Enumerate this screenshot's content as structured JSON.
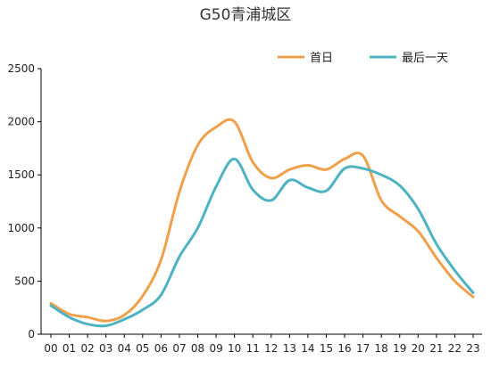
{
  "chart_data": {
    "type": "line",
    "title": "G50青浦城区",
    "xlabel": "",
    "ylabel": "",
    "categories": [
      "00",
      "01",
      "02",
      "03",
      "04",
      "05",
      "06",
      "07",
      "08",
      "09",
      "10",
      "11",
      "12",
      "13",
      "14",
      "15",
      "16",
      "17",
      "18",
      "19",
      "20",
      "21",
      "22",
      "23"
    ],
    "ylim": [
      0,
      2500
    ],
    "yticks": [
      0,
      500,
      1000,
      1500,
      2000,
      2500
    ],
    "grid": false,
    "legend_position": "top-right",
    "series": [
      {
        "name": "首日",
        "color": "#F0A04B",
        "values": [
          290,
          190,
          160,
          125,
          180,
          360,
          700,
          1340,
          1780,
          1950,
          2000,
          1620,
          1470,
          1550,
          1590,
          1550,
          1650,
          1680,
          1260,
          1110,
          970,
          720,
          500,
          350
        ]
      },
      {
        "name": "最后一天",
        "color": "#4DB3C2",
        "values": [
          270,
          160,
          95,
          80,
          140,
          230,
          370,
          730,
          1000,
          1390,
          1650,
          1360,
          1260,
          1450,
          1380,
          1350,
          1560,
          1560,
          1500,
          1400,
          1180,
          850,
          600,
          390
        ]
      }
    ]
  }
}
